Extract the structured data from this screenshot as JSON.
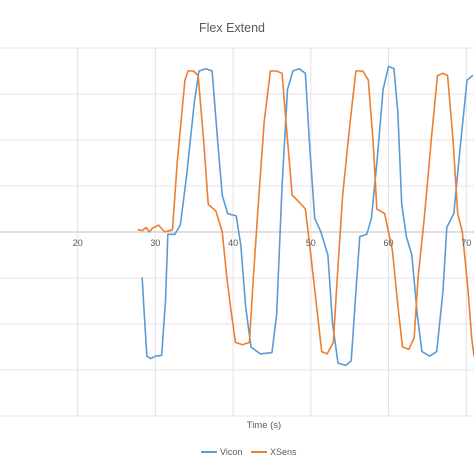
{
  "chart_data": {
    "type": "line",
    "title": "Flex Extend",
    "xlabel": "Time (s)",
    "ylabel": "",
    "xlim": [
      10,
      71
    ],
    "ylim": [
      -4,
      4
    ],
    "x_ticks": [
      20,
      30,
      40,
      50,
      60,
      70
    ],
    "x_tick_labels": [
      "20",
      "30",
      "40",
      "50",
      "60",
      "70"
    ],
    "y_gridlines": [
      -4,
      -3,
      -2,
      -1,
      0,
      1,
      2,
      3,
      4
    ],
    "grid": true,
    "legend_position": "bottom",
    "series": [
      {
        "name": "Vicon",
        "color": "#5B9BD5",
        "points": [
          [
            28.3,
            -1.0
          ],
          [
            28.5,
            -1.6
          ],
          [
            28.9,
            -2.7
          ],
          [
            29.4,
            -2.75
          ],
          [
            30.0,
            -2.7
          ],
          [
            30.8,
            -2.68
          ],
          [
            31.3,
            -1.5
          ],
          [
            31.6,
            -0.05
          ],
          [
            32.5,
            -0.05
          ],
          [
            33.2,
            0.15
          ],
          [
            34.0,
            1.2
          ],
          [
            35.0,
            2.8
          ],
          [
            35.6,
            3.5
          ],
          [
            36.5,
            3.55
          ],
          [
            37.3,
            3.5
          ],
          [
            38.0,
            2.0
          ],
          [
            38.6,
            0.8
          ],
          [
            39.3,
            0.4
          ],
          [
            40.4,
            0.35
          ],
          [
            41.0,
            -0.3
          ],
          [
            41.6,
            -1.6
          ],
          [
            42.3,
            -2.5
          ],
          [
            43.5,
            -2.65
          ],
          [
            45.0,
            -2.62
          ],
          [
            45.6,
            -1.8
          ],
          [
            46.3,
            1.0
          ],
          [
            47.0,
            3.1
          ],
          [
            47.7,
            3.5
          ],
          [
            48.5,
            3.55
          ],
          [
            49.3,
            3.45
          ],
          [
            49.8,
            2.0
          ],
          [
            50.5,
            0.3
          ],
          [
            51.3,
            0.0
          ],
          [
            52.2,
            -0.5
          ],
          [
            52.8,
            -2.0
          ],
          [
            53.5,
            -2.85
          ],
          [
            54.5,
            -2.9
          ],
          [
            55.2,
            -2.8
          ],
          [
            55.8,
            -1.3
          ],
          [
            56.3,
            -0.1
          ],
          [
            57.2,
            -0.05
          ],
          [
            57.8,
            0.3
          ],
          [
            58.5,
            1.5
          ],
          [
            59.3,
            3.1
          ],
          [
            60.0,
            3.6
          ],
          [
            60.7,
            3.55
          ],
          [
            61.2,
            2.6
          ],
          [
            61.7,
            0.6
          ],
          [
            62.3,
            -0.1
          ],
          [
            63.0,
            -0.5
          ],
          [
            63.7,
            -1.8
          ],
          [
            64.3,
            -2.6
          ],
          [
            65.3,
            -2.7
          ],
          [
            66.2,
            -2.6
          ],
          [
            67.0,
            -1.3
          ],
          [
            67.5,
            0.1
          ],
          [
            68.4,
            0.4
          ],
          [
            69.2,
            1.8
          ],
          [
            70.1,
            3.3
          ],
          [
            70.8,
            3.4
          ]
        ]
      },
      {
        "name": "XSens",
        "color": "#ED7D31",
        "points": [
          [
            27.8,
            0.05
          ],
          [
            28.3,
            0.03
          ],
          [
            28.8,
            0.1
          ],
          [
            29.2,
            0.0
          ],
          [
            29.6,
            0.08
          ],
          [
            30.4,
            0.15
          ],
          [
            31.2,
            0.0
          ],
          [
            32.2,
            0.05
          ],
          [
            32.8,
            1.5
          ],
          [
            33.8,
            3.3
          ],
          [
            34.2,
            3.5
          ],
          [
            34.9,
            3.5
          ],
          [
            35.5,
            3.4
          ],
          [
            36.2,
            2.0
          ],
          [
            36.8,
            0.6
          ],
          [
            37.8,
            0.45
          ],
          [
            38.6,
            0.0
          ],
          [
            39.2,
            -1.0
          ],
          [
            39.8,
            -1.8
          ],
          [
            40.3,
            -2.4
          ],
          [
            41.2,
            -2.45
          ],
          [
            42.1,
            -2.4
          ],
          [
            42.6,
            -1.0
          ],
          [
            43.2,
            0.5
          ],
          [
            44.0,
            2.4
          ],
          [
            44.8,
            3.5
          ],
          [
            45.6,
            3.5
          ],
          [
            46.3,
            3.45
          ],
          [
            47.0,
            2.0
          ],
          [
            47.6,
            0.8
          ],
          [
            48.5,
            0.65
          ],
          [
            49.3,
            0.5
          ],
          [
            50.0,
            -0.5
          ],
          [
            50.8,
            -1.7
          ],
          [
            51.4,
            -2.6
          ],
          [
            52.1,
            -2.65
          ],
          [
            52.9,
            -2.4
          ],
          [
            53.4,
            -1.0
          ],
          [
            54.1,
            0.8
          ],
          [
            55.0,
            2.3
          ],
          [
            55.8,
            3.5
          ],
          [
            56.7,
            3.5
          ],
          [
            57.4,
            3.3
          ],
          [
            58.0,
            2.0
          ],
          [
            58.5,
            0.5
          ],
          [
            59.5,
            0.4
          ],
          [
            60.5,
            -0.4
          ],
          [
            61.2,
            -1.6
          ],
          [
            61.8,
            -2.5
          ],
          [
            62.6,
            -2.55
          ],
          [
            63.3,
            -2.3
          ],
          [
            63.8,
            -1.0
          ],
          [
            64.6,
            0.3
          ],
          [
            65.5,
            2.0
          ],
          [
            66.3,
            3.4
          ],
          [
            67.0,
            3.45
          ],
          [
            67.6,
            3.4
          ],
          [
            68.3,
            2.0
          ],
          [
            68.9,
            0.4
          ],
          [
            69.5,
            0.0
          ],
          [
            70.2,
            -1.2
          ],
          [
            70.7,
            -2.3
          ],
          [
            71.0,
            -2.7
          ]
        ]
      }
    ]
  }
}
